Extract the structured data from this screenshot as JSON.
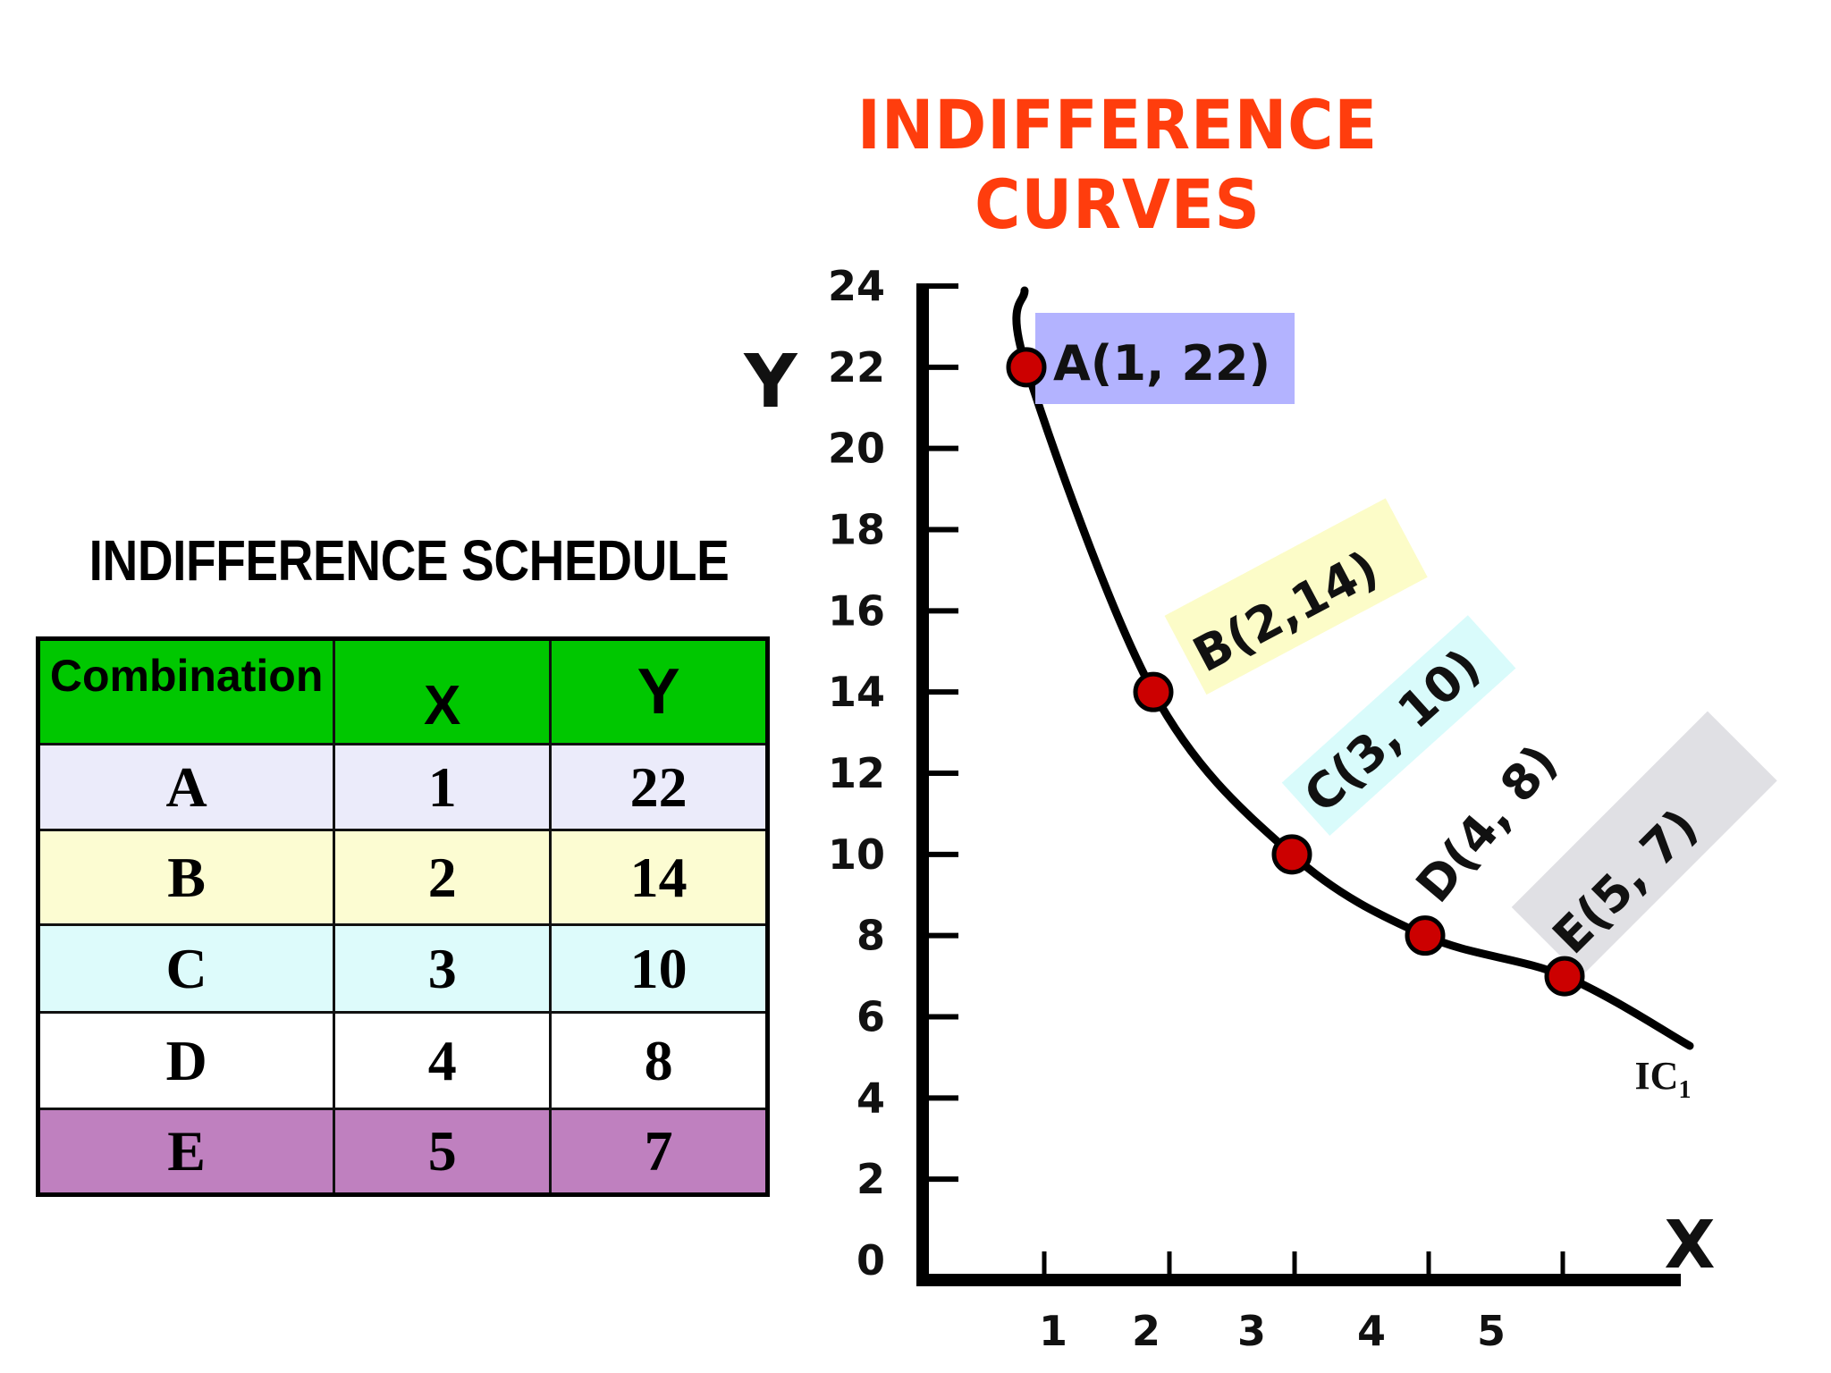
{
  "page_title": "INDIFFERENCE CURVES",
  "colors": {
    "title": "#ff3d0d",
    "header_bg": "#00c700",
    "point_fill": "#cc0000",
    "row_A": "#ebebfa",
    "row_B": "#fcfcd2",
    "row_C": "#ddfbfb",
    "row_D": "#ffffff",
    "row_E": "#bf80bf"
  },
  "schedule": {
    "title": "INDIFFERENCE SCHEDULE",
    "headers": [
      "Combination",
      "X",
      "Y"
    ],
    "rows": [
      {
        "combination": "A",
        "x": "1",
        "y": "22",
        "bg": "#ebebfa"
      },
      {
        "combination": "B",
        "x": "2",
        "y": "14",
        "bg": "#fcfcd2"
      },
      {
        "combination": "C",
        "x": "3",
        "y": "10",
        "bg": "#ddfbfb"
      },
      {
        "combination": "D",
        "x": "4",
        "y": "8",
        "bg": "#ffffff"
      },
      {
        "combination": "E",
        "x": "5",
        "y": "7",
        "bg": "#bf80bf"
      }
    ]
  },
  "chart_data": {
    "type": "line",
    "title": "INDIFFERENCE CURVES",
    "xlabel": "X",
    "ylabel": "Y",
    "x_ticks": [
      "1",
      "2",
      "3",
      "4",
      "5"
    ],
    "y_ticks": [
      "0",
      "2",
      "4",
      "6",
      "8",
      "10",
      "12",
      "14",
      "16",
      "18",
      "20",
      "22",
      "24"
    ],
    "xlim": [
      0,
      6
    ],
    "ylim": [
      0,
      24
    ],
    "grid": false,
    "series": [
      {
        "name": "IC1",
        "x": [
          1,
          2,
          3,
          4,
          5
        ],
        "y": [
          22,
          14,
          10,
          8,
          7
        ],
        "labels": [
          "A(1, 22)",
          "B(2,14)",
          "C(3, 10)",
          "D(4, 8)",
          "E(5, 7)"
        ],
        "label_bg": [
          "#b3b3ff",
          "#fcfcc8",
          "#d9fbfb",
          "#ffffff",
          "#e0e0e4"
        ]
      }
    ]
  }
}
